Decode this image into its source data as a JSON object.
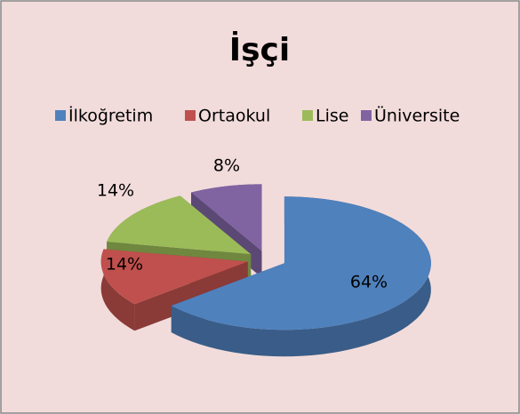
{
  "chart_data": {
    "type": "pie3d",
    "title": "İşçi",
    "categories": [
      "İlkoğretim",
      "Ortaokul",
      "Lise",
      "Üniversite"
    ],
    "values": [
      64,
      14,
      14,
      8
    ],
    "value_labels": [
      "64%",
      "14%",
      "14%",
      "8%"
    ],
    "colors": [
      "#4f81bd",
      "#c0504d",
      "#9bbb59",
      "#8064a2"
    ],
    "legend": "top"
  }
}
